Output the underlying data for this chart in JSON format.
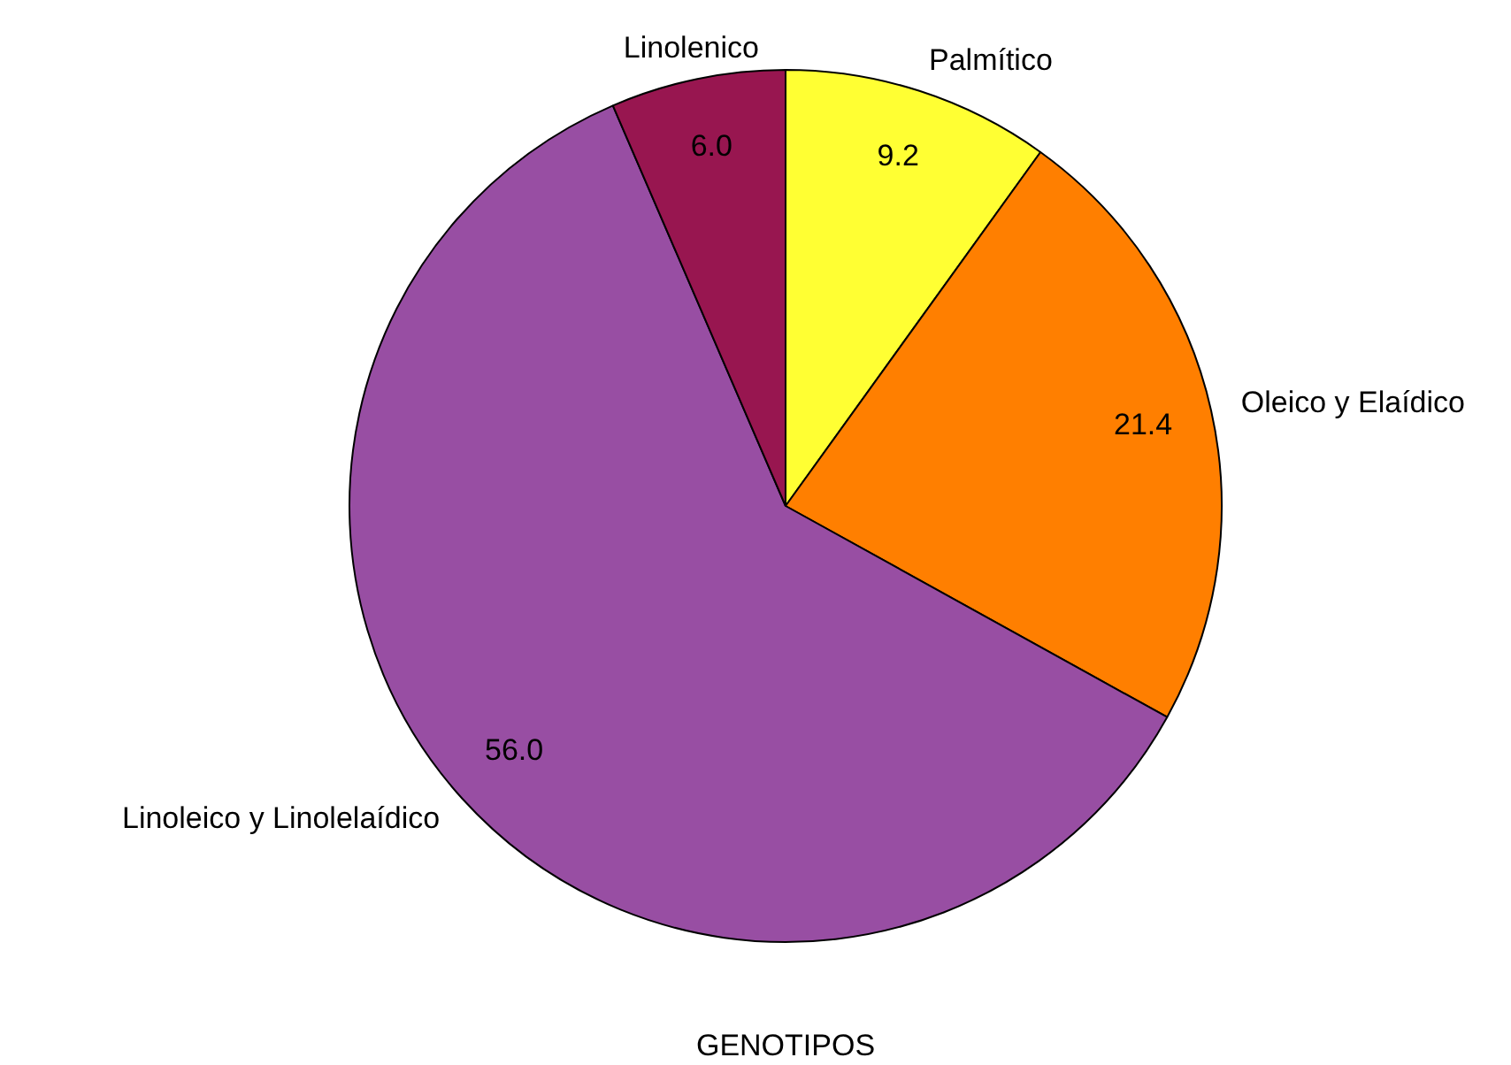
{
  "chart_data": {
    "type": "pie",
    "xlabel": "GENOTIPOS",
    "categories": [
      "Palmítico",
      "Oleico y Elaídico",
      "Linoleico y Linolelaídico",
      "Linolenico"
    ],
    "values": [
      9.2,
      21.4,
      56.0,
      6.0
    ],
    "colors": [
      "#ffff33",
      "#ff7f00",
      "#984ea3",
      "#981650"
    ],
    "value_labels": [
      "9.2",
      "21.4",
      "56.0",
      "6.0"
    ],
    "legend": false
  }
}
